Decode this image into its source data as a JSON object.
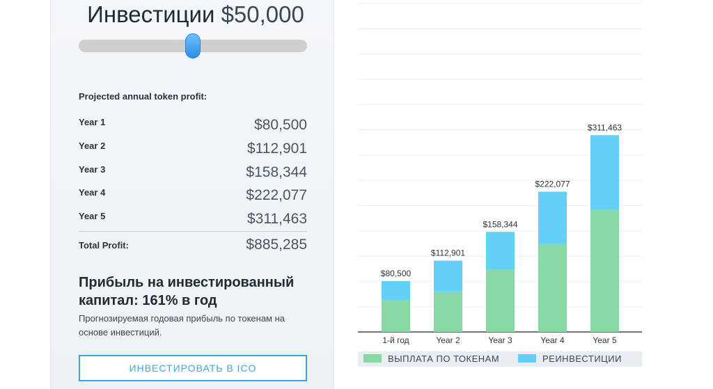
{
  "investment": {
    "title": "Инвестиции",
    "amount": "$50,000",
    "slider_value_fraction": 0.5
  },
  "profit": {
    "heading": "Projected annual token profit:",
    "rows": [
      {
        "label": "Year 1",
        "value": "$80,500"
      },
      {
        "label": "Year 2",
        "value": "$112,901"
      },
      {
        "label": "Year 3",
        "value": "$158,344"
      },
      {
        "label": "Year 4",
        "value": "$222,077"
      },
      {
        "label": "Year 5",
        "value": "$311,463"
      }
    ],
    "total_label": "Total Profit:",
    "total_value": "$885,285"
  },
  "roi": {
    "heading": "Прибыль на инвестированный капитал: 161% в год",
    "description": "Прогнозируемая годовая прибыль по токенам на основе инвестиций."
  },
  "button": {
    "label": "ИНВЕСТИРОВАТЬ В ICO"
  },
  "legend": {
    "payout": "ВЫПЛАТА ПО ТОКЕНАМ",
    "reinvest": "РЕИНВЕСТИЦИИ"
  },
  "colors": {
    "payout": "#88d8a3",
    "reinvest": "#63d1f6",
    "button_accent": "#3aa6dc"
  },
  "chart_data": {
    "type": "bar",
    "stacked": true,
    "categories": [
      "1-й год",
      "Year 2",
      "Year 3",
      "Year 4",
      "Year 5"
    ],
    "series": [
      {
        "name": "ВЫПЛАТА ПО ТОКЕНАМ",
        "values": [
          50000,
          64000,
          99000,
          139000,
          193000
        ]
      },
      {
        "name": "РЕИНВЕСТИЦИИ",
        "values": [
          30500,
          48901,
          59344,
          83077,
          118463
        ]
      }
    ],
    "data_labels": [
      "$80,500",
      "$112,901",
      "$158,344",
      "$222,077",
      "$311,463"
    ],
    "ylim": [
      0,
      520000
    ],
    "grid": true,
    "legend": "bottom"
  }
}
